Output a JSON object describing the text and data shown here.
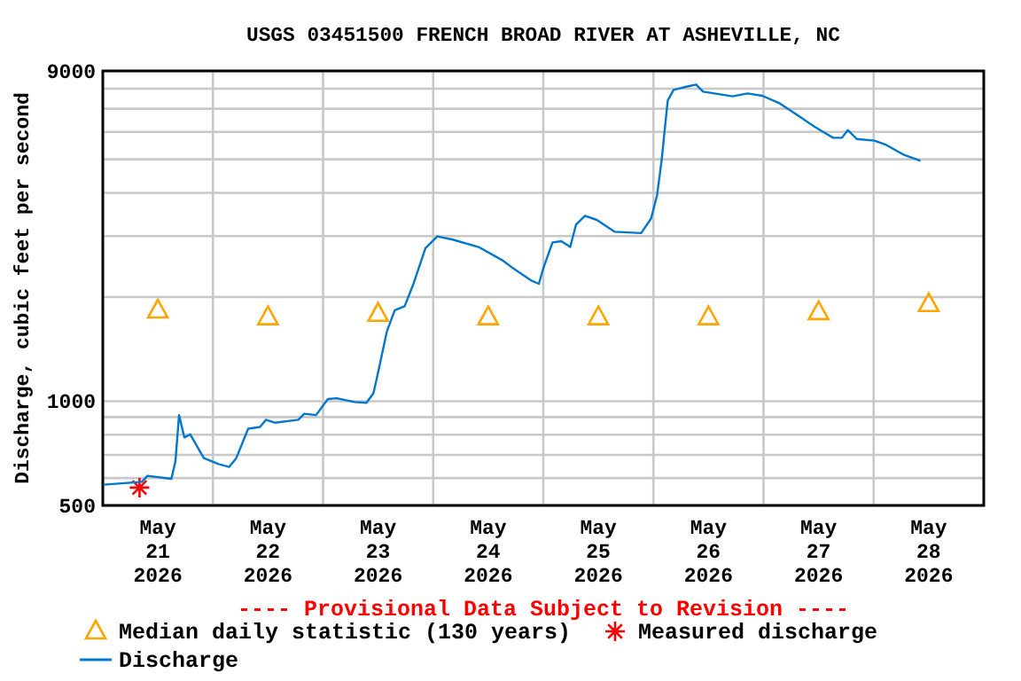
{
  "chart_data": {
    "type": "line",
    "title": "USGS 03451500 FRENCH BROAD RIVER AT ASHEVILLE, NC",
    "ylabel": "Discharge, cubic feet per second",
    "annotations": [
      "---- Provisional Data Subject to Revision ----"
    ],
    "log": "y",
    "grid": true,
    "legend": "bottom",
    "xlim": [
      "2026-05-21T00:00",
      "2026-05-29T00:00"
    ],
    "xticks": [
      {
        "value": "2026-05-22T00:00",
        "label": null
      },
      {
        "value": "2026-05-23T00:00",
        "label": null
      },
      {
        "value": "2026-05-24T00:00",
        "label": null
      },
      {
        "value": "2026-05-25T00:00",
        "label": null
      },
      {
        "value": "2026-05-26T00:00",
        "label": null
      },
      {
        "value": "2026-05-27T00:00",
        "label": null
      },
      {
        "value": "2026-05-28T00:00",
        "label": null
      },
      {
        "value": "2026-05-21T12:00",
        "label": "May\n21\n2026"
      },
      {
        "value": "2026-05-22T12:00",
        "label": "May\n22\n2026"
      },
      {
        "value": "2026-05-23T12:00",
        "label": "May\n23\n2026"
      },
      {
        "value": "2026-05-24T12:00",
        "label": "May\n24\n2026"
      },
      {
        "value": "2026-05-25T12:00",
        "label": "May\n25\n2026"
      },
      {
        "value": "2026-05-26T12:00",
        "label": "May\n26\n2026"
      },
      {
        "value": "2026-05-27T12:00",
        "label": "May\n27\n2026"
      },
      {
        "value": "2026-05-28T12:00",
        "label": "May\n28\n2026"
      }
    ],
    "ylim": [
      500,
      9000
    ],
    "yticks": [
      500,
      {
        "value": 600,
        "label": null
      },
      {
        "value": 700,
        "label": null
      },
      {
        "value": 800,
        "label": null
      },
      {
        "value": 900,
        "label": null
      },
      1000,
      {
        "value": 2000,
        "label": null
      },
      {
        "value": 3000,
        "label": null
      },
      {
        "value": 4000,
        "label": null
      },
      {
        "value": 5000,
        "label": null
      },
      {
        "value": 6000,
        "label": null
      },
      {
        "value": 7000,
        "label": null
      },
      {
        "value": 8000,
        "label": null
      },
      9000
    ],
    "series": [
      {
        "name": "Median daily statistic (130 years)",
        "type": "scatter",
        "marker": "triangle",
        "color": "#ffa500",
        "x": [
          "2026-05-21T12:00",
          "2026-05-22T12:00",
          "2026-05-23T12:00",
          "2026-05-24T12:00",
          "2026-05-25T12:00",
          "2026-05-26T12:00",
          "2026-05-27T12:00",
          "2026-05-28T12:00"
        ],
        "values": [
          1830,
          1750,
          1790,
          1750,
          1750,
          1750,
          1810,
          1910
        ]
      },
      {
        "name": "Measured discharge",
        "type": "scatter",
        "marker": "cross",
        "color": "#ff0000",
        "x": [
          "2026-05-21T08:00"
        ],
        "values": [
          563
        ]
      },
      {
        "name": "Discharge",
        "marker": "none",
        "line_style": "solid",
        "color": "#0077cc",
        "x": [
          "2026-05-21T00:07",
          "2026-05-21T08:30",
          "2026-05-21T09:46",
          "2026-05-21T14:57",
          "2026-05-21T15:50",
          "2026-05-21T16:37",
          "2026-05-21T17:46",
          "2026-05-21T19:03",
          "2026-05-21T22:01",
          "2026-05-22T01:14",
          "2026-05-22T03:33",
          "2026-05-22T05:05",
          "2026-05-22T07:41",
          "2026-05-22T10:16",
          "2026-05-22T11:32",
          "2026-05-22T13:28",
          "2026-05-22T18:37",
          "2026-05-22T19:55",
          "2026-05-22T22:28",
          "2026-05-23T01:04",
          "2026-05-23T02:59",
          "2026-05-23T06:52",
          "2026-05-23T09:27",
          "2026-05-23T10:59",
          "2026-05-23T12:00",
          "2026-05-23T13:56",
          "2026-05-23T15:38",
          "2026-05-23T17:47",
          "2026-05-23T19:43",
          "2026-05-23T22:19",
          "2026-05-24T00:54",
          "2026-05-24T04:07",
          "2026-05-24T09:54",
          "2026-05-24T15:02",
          "2026-05-24T17:38",
          "2026-05-24T21:29",
          "2026-05-24T23:02",
          "2026-05-25T00:05",
          "2026-05-25T02:01",
          "2026-05-25T03:56",
          "2026-05-25T05:52",
          "2026-05-25T07:08",
          "2026-05-25T09:05",
          "2026-05-25T11:40",
          "2026-05-25T15:32",
          "2026-05-25T21:20",
          "2026-05-25T23:29",
          "2026-05-26T00:48",
          "2026-05-26T01:48",
          "2026-05-26T03:07",
          "2026-05-26T04:23",
          "2026-05-26T06:59",
          "2026-05-26T09:18",
          "2026-05-26T10:50",
          "2026-05-26T17:16",
          "2026-05-26T20:30",
          "2026-05-26T23:43",
          "2026-05-27T03:34",
          "2026-05-27T07:26",
          "2026-05-27T11:18",
          "2026-05-27T15:10",
          "2026-05-27T17:05",
          "2026-05-27T18:22",
          "2026-05-27T20:18",
          "2026-05-28T00:10",
          "2026-05-28T02:45",
          "2026-05-28T06:37",
          "2026-05-28T10:13"
        ],
        "values": [
          574,
          585,
          609,
          597,
          671,
          912,
          786,
          802,
          685,
          658,
          646,
          685,
          833,
          843,
          884,
          867,
          884,
          920,
          912,
          1015,
          1020,
          995,
          990,
          1055,
          1211,
          1595,
          1831,
          1881,
          2185,
          2767,
          2994,
          2934,
          2790,
          2557,
          2410,
          2228,
          2185,
          2439,
          2877,
          2900,
          2790,
          3237,
          3434,
          3341,
          3088,
          3060,
          3370,
          3940,
          4988,
          7394,
          7933,
          8093,
          8222,
          7839,
          7600,
          7750,
          7630,
          7250,
          6700,
          6190,
          5770,
          5770,
          6073,
          5725,
          5660,
          5500,
          5150,
          4950
        ]
      }
    ]
  }
}
